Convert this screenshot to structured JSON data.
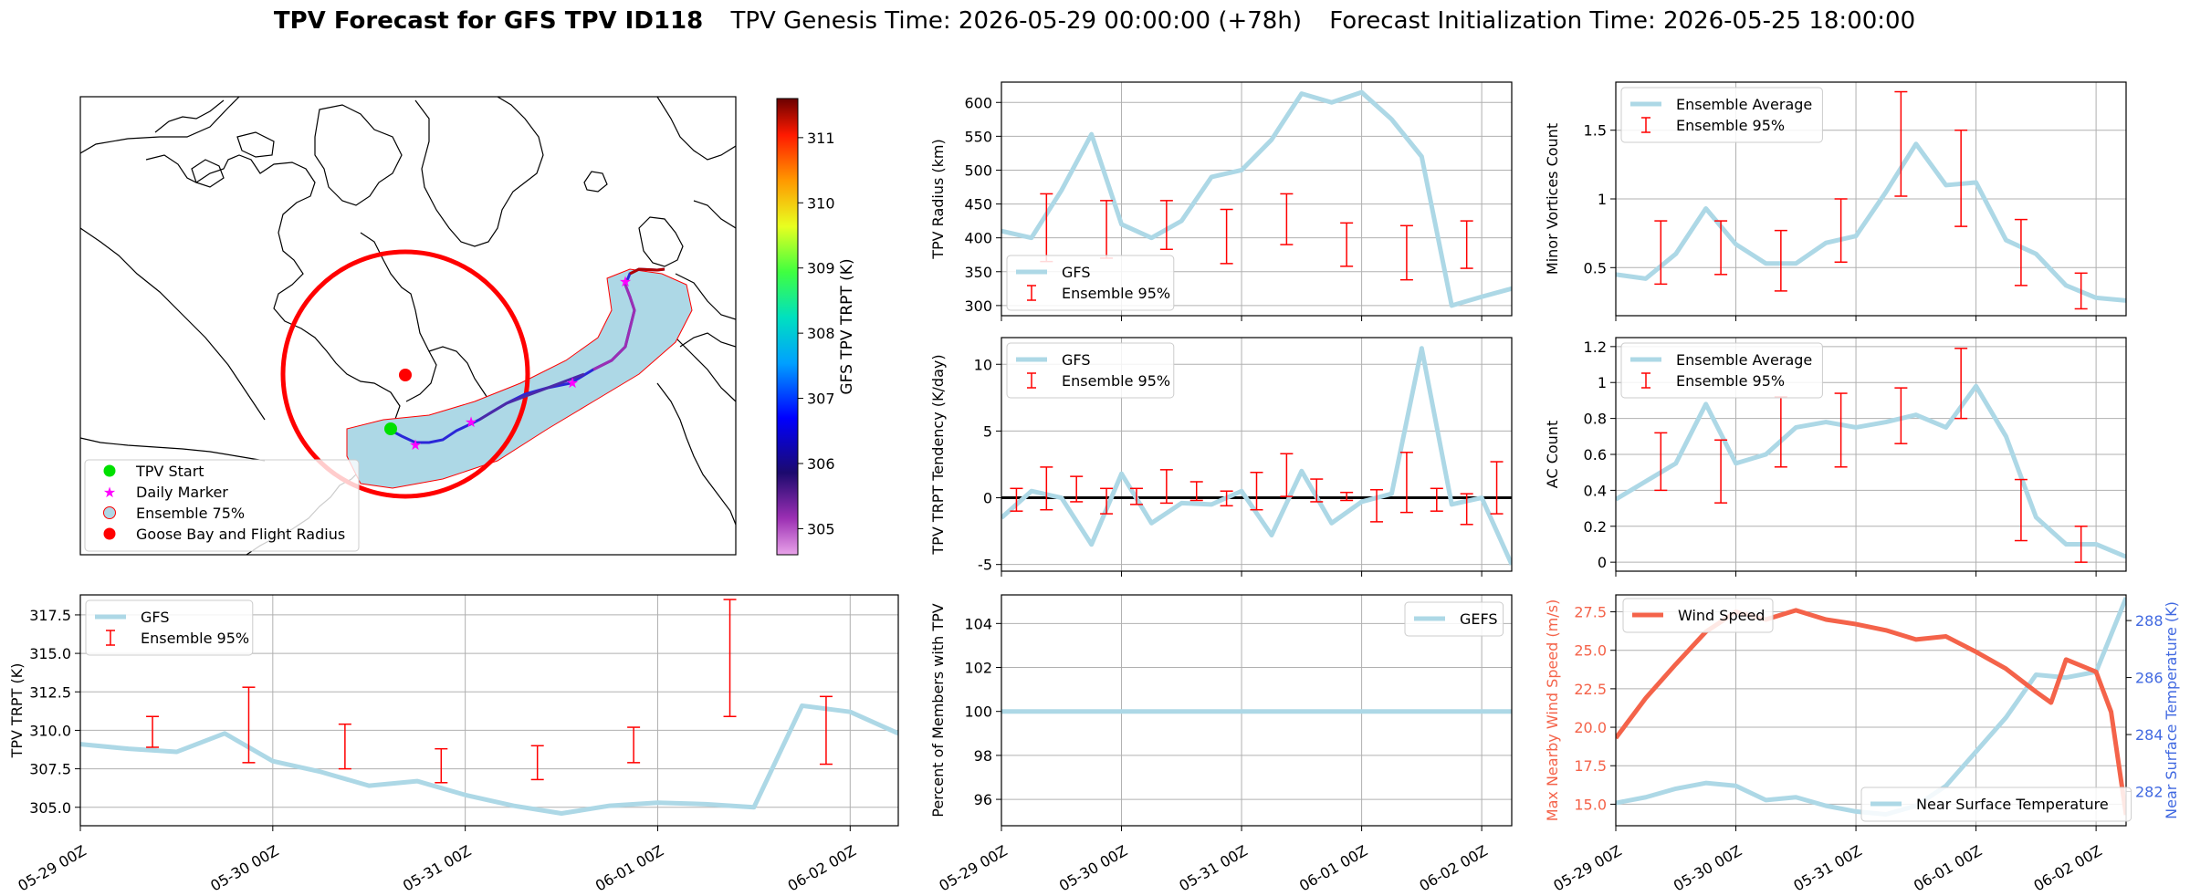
{
  "header": {
    "title_bold": "TPV Forecast for GFS TPV ID118",
    "genesis": "TPV Genesis Time: 2026-05-29 00:00:00 (+78h)",
    "init": "Forecast Initialization Time: 2026-05-25 18:00:00"
  },
  "colors": {
    "gfs_line": "#add8e6",
    "ensemble": "#ff0000",
    "wind": "#f4634a",
    "temp_axis": "#4169e1",
    "land_fill": "#ffffff",
    "ensemble75_fill": "#add8e6"
  },
  "time_axis": {
    "start": "2026-05-29 00Z",
    "end": "2026-06-02 00Z",
    "tick_labels": [
      "05-29 00Z",
      "05-30 00Z",
      "05-31 00Z",
      "06-01 00Z",
      "06-02 00Z"
    ]
  },
  "map": {
    "colorbar_label": "GFS TPV TRPT (K)",
    "colorbar_ticks": [
      "305",
      "306",
      "307",
      "308",
      "309",
      "310",
      "311"
    ],
    "colorbar_range": [
      304.6,
      311.6
    ],
    "legend": [
      {
        "label": "TPV Start",
        "icon": "green-circle"
      },
      {
        "label": "Daily Marker",
        "icon": "magenta-star"
      },
      {
        "label": "Ensemble 75%",
        "icon": "lightblue-circle"
      },
      {
        "label": "Goose Bay and Flight Radius",
        "icon": "red-circle"
      }
    ]
  },
  "chart_data": [
    {
      "id": "radius",
      "type": "line",
      "ylabel": "TPV Radius (km)",
      "ylim": [
        285,
        630
      ],
      "yticks": [
        300,
        350,
        400,
        450,
        500,
        550,
        600
      ],
      "legend": [
        "GFS",
        "Ensemble 95%"
      ],
      "legend_position": "lower-left",
      "x_hours": [
        0,
        6,
        12,
        18,
        24,
        30,
        36,
        42,
        48,
        54,
        60,
        66,
        72,
        78,
        84,
        90,
        96,
        102
      ],
      "gfs": [
        410,
        400,
        470,
        553,
        420,
        400,
        425,
        490,
        500,
        545,
        613,
        600,
        615,
        575,
        520,
        300,
        313,
        325
      ],
      "ensemble_95": [
        {
          "h": -3,
          "low": 380,
          "high": 465
        },
        {
          "h": 9,
          "low": 365,
          "high": 465
        },
        {
          "h": 21,
          "low": 370,
          "high": 455
        },
        {
          "h": 33,
          "low": 383,
          "high": 455
        },
        {
          "h": 45,
          "low": 362,
          "high": 442
        },
        {
          "h": 57,
          "low": 390,
          "high": 465
        },
        {
          "h": 69,
          "low": 358,
          "high": 422
        },
        {
          "h": 81,
          "low": 338,
          "high": 418
        },
        {
          "h": 93,
          "low": 355,
          "high": 425
        }
      ]
    },
    {
      "id": "minor",
      "type": "line",
      "ylabel": "Minor Vortices Count",
      "ylim": [
        0.15,
        1.85
      ],
      "yticks": [
        0.5,
        1.0,
        1.5
      ],
      "legend": [
        "Ensemble Average",
        "Ensemble 95%"
      ],
      "legend_position": "upper-left",
      "x_hours": [
        0,
        6,
        12,
        18,
        24,
        30,
        36,
        42,
        48,
        54,
        60,
        66,
        72,
        78,
        84,
        90,
        96,
        102
      ],
      "mean": [
        0.45,
        0.42,
        0.6,
        0.93,
        0.67,
        0.53,
        0.53,
        0.68,
        0.73,
        1.05,
        1.4,
        1.1,
        1.12,
        0.7,
        0.6,
        0.37,
        0.28,
        0.26
      ],
      "ensemble_95": [
        {
          "h": -3,
          "low": 0.22,
          "high": 0.62
        },
        {
          "h": 9,
          "low": 0.38,
          "high": 0.84
        },
        {
          "h": 21,
          "low": 0.45,
          "high": 0.84
        },
        {
          "h": 33,
          "low": 0.33,
          "high": 0.77
        },
        {
          "h": 45,
          "low": 0.54,
          "high": 1.0
        },
        {
          "h": 57,
          "low": 1.02,
          "high": 1.78
        },
        {
          "h": 69,
          "low": 0.8,
          "high": 1.5
        },
        {
          "h": 81,
          "low": 0.37,
          "high": 0.85
        },
        {
          "h": 93,
          "low": 0.2,
          "high": 0.46
        }
      ]
    },
    {
      "id": "tendency",
      "type": "line",
      "ylabel": "TPV TRPT Tendency (K/day)",
      "ylim": [
        -5.5,
        12
      ],
      "yticks": [
        -5,
        0,
        5,
        10
      ],
      "zero_line": true,
      "legend": [
        "GFS",
        "Ensemble 95%"
      ],
      "legend_position": "upper-left",
      "x_hours": [
        0,
        6,
        12,
        18,
        24,
        30,
        36,
        42,
        48,
        54,
        60,
        66,
        72,
        78,
        84,
        90,
        96,
        102
      ],
      "gfs": [
        -1.5,
        0.5,
        0,
        -3.5,
        1.8,
        -1.9,
        -0.4,
        -0.5,
        0.5,
        -2.8,
        2,
        -1.9,
        -0.3,
        0.3,
        11.2,
        -0.5,
        0,
        -5
      ],
      "ensemble_95": [
        {
          "h": -3,
          "low": -0.8,
          "high": 0.9
        },
        {
          "h": 3,
          "low": -1.0,
          "high": 0.7
        },
        {
          "h": 9,
          "low": -0.9,
          "high": 2.3
        },
        {
          "h": 15,
          "low": -0.3,
          "high": 1.6
        },
        {
          "h": 21,
          "low": -1.2,
          "high": 0.7
        },
        {
          "h": 27,
          "low": -0.5,
          "high": 0.7
        },
        {
          "h": 33,
          "low": -0.4,
          "high": 2.1
        },
        {
          "h": 39,
          "low": -0.2,
          "high": 1.2
        },
        {
          "h": 45,
          "low": -0.6,
          "high": 0.5
        },
        {
          "h": 51,
          "low": -0.9,
          "high": 1.9
        },
        {
          "h": 57,
          "low": 0.1,
          "high": 3.3
        },
        {
          "h": 63,
          "low": -0.3,
          "high": 1.4
        },
        {
          "h": 69,
          "low": -0.2,
          "high": 0.4
        },
        {
          "h": 75,
          "low": -1.8,
          "high": 0.6
        },
        {
          "h": 81,
          "low": -1.1,
          "high": 3.4
        },
        {
          "h": 87,
          "low": -1.0,
          "high": 0.7
        },
        {
          "h": 93,
          "low": -2.0,
          "high": 0.3
        },
        {
          "h": 99,
          "low": -1.2,
          "high": 2.7
        }
      ]
    },
    {
      "id": "ac",
      "type": "line",
      "ylabel": "AC Count",
      "ylim": [
        -0.05,
        1.25
      ],
      "yticks": [
        0.0,
        0.2,
        0.4,
        0.6,
        0.8,
        1.0,
        1.2
      ],
      "legend": [
        "Ensemble Average",
        "Ensemble 95%"
      ],
      "legend_position": "upper-left",
      "x_hours": [
        0,
        6,
        12,
        18,
        24,
        30,
        36,
        42,
        48,
        54,
        60,
        66,
        72,
        78,
        84,
        90,
        96,
        102
      ],
      "mean": [
        0.35,
        0.45,
        0.55,
        0.88,
        0.55,
        0.6,
        0.75,
        0.78,
        0.75,
        0.78,
        0.82,
        0.75,
        0.98,
        0.7,
        0.25,
        0.1,
        0.1,
        0.03
      ],
      "ensemble_95": [
        {
          "h": -3,
          "low": 0.13,
          "high": 0.5
        },
        {
          "h": 9,
          "low": 0.4,
          "high": 0.72
        },
        {
          "h": 21,
          "low": 0.33,
          "high": 0.68
        },
        {
          "h": 33,
          "low": 0.53,
          "high": 0.92
        },
        {
          "h": 45,
          "low": 0.53,
          "high": 0.94
        },
        {
          "h": 57,
          "low": 0.66,
          "high": 0.97
        },
        {
          "h": 69,
          "low": 0.8,
          "high": 1.19
        },
        {
          "h": 81,
          "low": 0.12,
          "high": 0.46
        },
        {
          "h": 93,
          "low": 0.0,
          "high": 0.2
        }
      ]
    },
    {
      "id": "trpt",
      "type": "line",
      "ylabel": "TPV TRPT (K)",
      "ylim": [
        303.8,
        318.8
      ],
      "yticks": [
        305.0,
        307.5,
        310.0,
        312.5,
        315.0,
        317.5
      ],
      "ytick_labels": [
        "305.0",
        "307.5",
        "310.0",
        "312.5",
        "315.0",
        "317.5"
      ],
      "legend": [
        "GFS",
        "Ensemble 95%"
      ],
      "legend_position": "upper-left",
      "x_hours": [
        0,
        6,
        12,
        18,
        24,
        30,
        36,
        42,
        48,
        54,
        60,
        66,
        72,
        78,
        84,
        90,
        96,
        102
      ],
      "gfs": [
        309.1,
        308.8,
        308.6,
        309.8,
        308.0,
        307.3,
        306.4,
        306.7,
        305.8,
        305.1,
        304.6,
        305.1,
        305.3,
        305.2,
        305.0,
        311.6,
        311.2,
        309.8
      ],
      "ensemble_95": [
        {
          "h": -3,
          "low": 310.3,
          "high": 311.5
        },
        {
          "h": 9,
          "low": 308.9,
          "high": 310.9
        },
        {
          "h": 21,
          "low": 307.9,
          "high": 312.8
        },
        {
          "h": 33,
          "low": 307.5,
          "high": 310.4
        },
        {
          "h": 45,
          "low": 306.6,
          "high": 308.8
        },
        {
          "h": 57,
          "low": 306.8,
          "high": 309.0
        },
        {
          "h": 69,
          "low": 307.9,
          "high": 310.2
        },
        {
          "h": 81,
          "low": 310.9,
          "high": 318.5
        },
        {
          "h": 93,
          "low": 307.8,
          "high": 312.2
        }
      ]
    },
    {
      "id": "percent",
      "type": "line",
      "ylabel": "Percent of Members with TPV",
      "ylim": [
        94.8,
        105.3
      ],
      "yticks": [
        96,
        98,
        100,
        102,
        104
      ],
      "legend": [
        "GEFS"
      ],
      "legend_position": "upper-right",
      "x_hours": [
        0,
        102
      ],
      "gefs": [
        100,
        100
      ]
    },
    {
      "id": "wind",
      "type": "line",
      "ylabel": "Max Nearby Wind Speed (m/s)",
      "ylabel_right": "Near Surface Temperature (K)",
      "ylim": [
        13.6,
        28.6
      ],
      "yticks": [
        15.0,
        17.5,
        20.0,
        22.5,
        25.0,
        27.5
      ],
      "ytick_labels": [
        "15.0",
        "17.5",
        "20.0",
        "22.5",
        "25.0",
        "27.5"
      ],
      "ylim_right": [
        280.8,
        288.9
      ],
      "yticks_right": [
        282,
        284,
        286,
        288
      ],
      "legend": [
        "Wind Speed",
        "Near Surface Temperature"
      ],
      "x_hours": [
        0,
        6,
        12,
        18,
        24,
        30,
        36,
        42,
        48,
        54,
        60,
        66,
        72,
        78,
        84,
        87,
        90,
        96,
        99,
        102
      ],
      "wind": [
        19.3,
        21.9,
        24.1,
        26.2,
        27.5,
        27.0,
        27.6,
        27.0,
        26.7,
        26.3,
        25.7,
        25.9,
        24.9,
        23.8,
        22.3,
        21.6,
        24.4,
        23.6,
        21.0,
        14.3
      ],
      "temp_hours": [
        0,
        6,
        12,
        18,
        24,
        30,
        36,
        42,
        48,
        54,
        60,
        66,
        72,
        78,
        84,
        90,
        96,
        102
      ],
      "temp": [
        281.6,
        281.8,
        282.1,
        282.3,
        282.2,
        281.7,
        281.8,
        281.5,
        281.3,
        281.2,
        281.5,
        282.2,
        283.4,
        284.6,
        286.1,
        286.0,
        286.2,
        288.8
      ]
    }
  ]
}
